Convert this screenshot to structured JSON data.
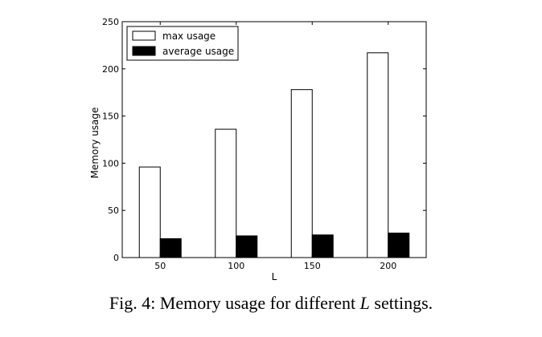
{
  "chart_data": {
    "type": "bar",
    "categories": [
      "50",
      "100",
      "150",
      "200"
    ],
    "series": [
      {
        "name": "max usage",
        "values": [
          96,
          136,
          178,
          217
        ],
        "color": "#ffffff"
      },
      {
        "name": "average usage",
        "values": [
          20,
          23,
          24,
          26
        ],
        "color": "#000000"
      }
    ],
    "xlabel": "L",
    "ylabel": "Memory usage",
    "ylim": [
      0,
      250
    ],
    "yticks": [
      0,
      50,
      100,
      150,
      200,
      250
    ],
    "legend": "top-left",
    "grid": false
  },
  "caption": {
    "prefix": "Fig. 4: Memory usage for different ",
    "variable": "L",
    "suffix": " settings."
  }
}
